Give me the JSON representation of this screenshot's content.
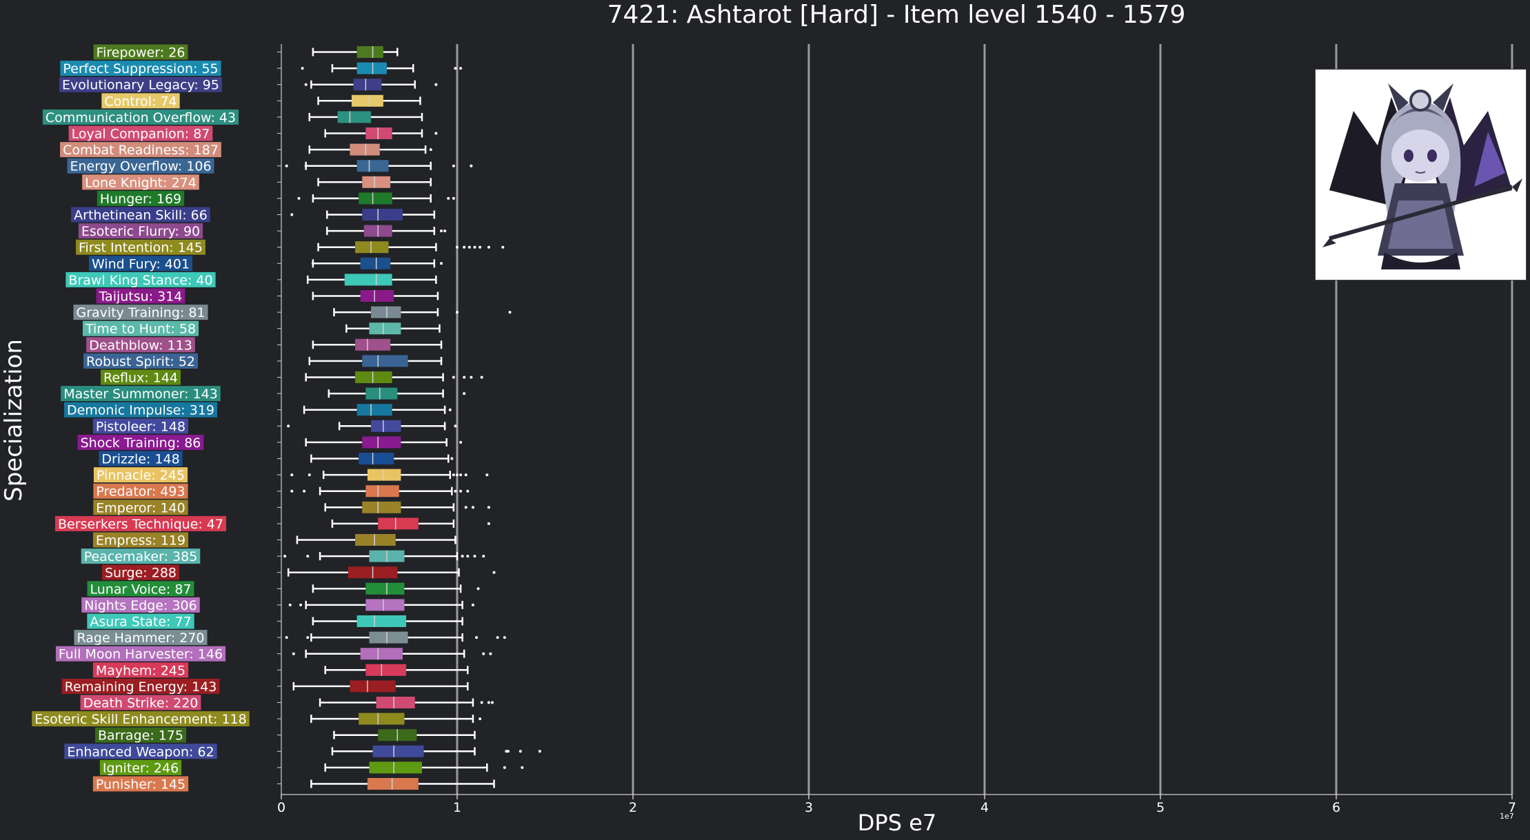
{
  "page": {
    "title": "7421: Ashtarot [Hard] - Item level 1540 - 1579",
    "ylabel": "Specialization",
    "xlabel": "DPS e7",
    "sci_note": "1e7"
  },
  "portrait": {
    "icon": "ashtarot-boss-portrait"
  },
  "chart_data": {
    "type": "box",
    "title": "7421: Ashtarot [Hard] - Item level 1540 - 1579",
    "xlabel": "DPS e7",
    "ylabel": "Specialization",
    "xlim": [
      0,
      7
    ],
    "xticks": [
      0,
      1,
      2,
      3,
      4,
      5,
      6,
      7
    ],
    "x_scale_note": "1e7",
    "grid": "vertical",
    "categories": [
      {
        "label": "Firepower: 26",
        "color": "#4d7a1e",
        "whisker_low": 0.18,
        "q1": 0.43,
        "median": 0.52,
        "q3": 0.58,
        "whisker_high": 0.66,
        "outliers": []
      },
      {
        "label": "Perfect Suppression: 55",
        "color": "#1a8bb0",
        "whisker_low": 0.29,
        "q1": 0.43,
        "median": 0.52,
        "q3": 0.6,
        "whisker_high": 0.75,
        "outliers": [
          0.12,
          0.99,
          1.02
        ]
      },
      {
        "label": "Evolutionary Legacy: 95",
        "color": "#3e3f88",
        "whisker_low": 0.17,
        "q1": 0.41,
        "median": 0.48,
        "q3": 0.57,
        "whisker_high": 0.76,
        "outliers": [
          0.14,
          0.88
        ]
      },
      {
        "label": "Control: 74",
        "color": "#e5c86a",
        "whisker_low": 0.21,
        "q1": 0.4,
        "median": 0.5,
        "q3": 0.58,
        "whisker_high": 0.79,
        "outliers": []
      },
      {
        "label": "Communication Overflow: 43",
        "color": "#2e9080",
        "whisker_low": 0.16,
        "q1": 0.32,
        "median": 0.39,
        "q3": 0.51,
        "whisker_high": 0.8,
        "outliers": []
      },
      {
        "label": "Loyal Companion: 87",
        "color": "#d04a72",
        "whisker_low": 0.25,
        "q1": 0.48,
        "median": 0.55,
        "q3": 0.63,
        "whisker_high": 0.8,
        "outliers": [
          0.88
        ]
      },
      {
        "label": "Combat Readiness: 187",
        "color": "#d18c7c",
        "whisker_low": 0.16,
        "q1": 0.39,
        "median": 0.48,
        "q3": 0.56,
        "whisker_high": 0.82,
        "outliers": [
          0.85
        ]
      },
      {
        "label": "Energy Overflow: 106",
        "color": "#3a6694",
        "whisker_low": 0.14,
        "q1": 0.43,
        "median": 0.5,
        "q3": 0.61,
        "whisker_high": 0.85,
        "outliers": [
          0.03,
          0.14,
          0.98,
          1.08
        ]
      },
      {
        "label": "Lone Knight: 274",
        "color": "#d9907e",
        "whisker_low": 0.21,
        "q1": 0.46,
        "median": 0.53,
        "q3": 0.62,
        "whisker_high": 0.85,
        "outliers": []
      },
      {
        "label": "Hunger: 169",
        "color": "#1f7a2a",
        "whisker_low": 0.18,
        "q1": 0.44,
        "median": 0.52,
        "q3": 0.63,
        "whisker_high": 0.85,
        "outliers": [
          0.1,
          0.95,
          0.98
        ]
      },
      {
        "label": "Arthetinean Skill: 66",
        "color": "#3a3e8a",
        "whisker_low": 0.26,
        "q1": 0.46,
        "median": 0.55,
        "q3": 0.69,
        "whisker_high": 0.87,
        "outliers": [
          0.06
        ]
      },
      {
        "label": "Esoteric Flurry: 90",
        "color": "#8e4a8e",
        "whisker_low": 0.26,
        "q1": 0.47,
        "median": 0.55,
        "q3": 0.63,
        "whisker_high": 0.87,
        "outliers": [
          0.91,
          0.93
        ]
      },
      {
        "label": "First Intention: 145",
        "color": "#8e8a1e",
        "whisker_low": 0.21,
        "q1": 0.42,
        "median": 0.51,
        "q3": 0.61,
        "whisker_high": 0.88,
        "outliers": [
          1.0,
          1.04,
          1.07,
          1.1,
          1.13,
          1.18,
          1.26
        ]
      },
      {
        "label": "Wind Fury: 401",
        "color": "#1b4f8e",
        "whisker_low": 0.18,
        "q1": 0.45,
        "median": 0.54,
        "q3": 0.62,
        "whisker_high": 0.87,
        "outliers": [
          0.18,
          0.91
        ]
      },
      {
        "label": "Brawl King Stance: 40",
        "color": "#3ec8b8",
        "whisker_low": 0.15,
        "q1": 0.36,
        "median": 0.54,
        "q3": 0.63,
        "whisker_high": 0.88,
        "outliers": []
      },
      {
        "label": "Taijutsu: 314",
        "color": "#8a1a8a",
        "whisker_low": 0.18,
        "q1": 0.45,
        "median": 0.53,
        "q3": 0.64,
        "whisker_high": 0.89,
        "outliers": []
      },
      {
        "label": "Gravity Training: 81",
        "color": "#7a8a92",
        "whisker_low": 0.3,
        "q1": 0.51,
        "median": 0.6,
        "q3": 0.68,
        "whisker_high": 0.89,
        "outliers": [
          1.0,
          1.3
        ]
      },
      {
        "label": "Time to Hunt: 58",
        "color": "#5cb8a8",
        "whisker_low": 0.37,
        "q1": 0.5,
        "median": 0.58,
        "q3": 0.68,
        "whisker_high": 0.9,
        "outliers": []
      },
      {
        "label": "Deathblow: 113",
        "color": "#a0508a",
        "whisker_low": 0.18,
        "q1": 0.42,
        "median": 0.49,
        "q3": 0.62,
        "whisker_high": 0.91,
        "outliers": []
      },
      {
        "label": "Robust Spirit: 52",
        "color": "#3a6494",
        "whisker_low": 0.16,
        "q1": 0.46,
        "median": 0.55,
        "q3": 0.72,
        "whisker_high": 0.91,
        "outliers": []
      },
      {
        "label": "Reflux: 144",
        "color": "#5e8a12",
        "whisker_low": 0.14,
        "q1": 0.42,
        "median": 0.52,
        "q3": 0.63,
        "whisker_high": 0.92,
        "outliers": [
          0.98,
          1.04,
          1.08,
          1.14
        ]
      },
      {
        "label": "Master Summoner: 143",
        "color": "#2a8e7e",
        "whisker_low": 0.27,
        "q1": 0.48,
        "median": 0.56,
        "q3": 0.66,
        "whisker_high": 0.92,
        "outliers": [
          1.04
        ]
      },
      {
        "label": "Demonic Impulse: 319",
        "color": "#16789e",
        "whisker_low": 0.13,
        "q1": 0.43,
        "median": 0.51,
        "q3": 0.63,
        "whisker_high": 0.93,
        "outliers": [
          0.96
        ]
      },
      {
        "label": "Pistoleer: 148",
        "color": "#434a9e",
        "whisker_low": 0.33,
        "q1": 0.51,
        "median": 0.58,
        "q3": 0.68,
        "whisker_high": 0.93,
        "outliers": [
          0.04,
          0.99
        ]
      },
      {
        "label": "Shock Training: 86",
        "color": "#8a1a90",
        "whisker_low": 0.14,
        "q1": 0.46,
        "median": 0.55,
        "q3": 0.68,
        "whisker_high": 0.94,
        "outliers": [
          1.02
        ]
      },
      {
        "label": "Drizzle: 148",
        "color": "#1a4e92",
        "whisker_low": 0.17,
        "q1": 0.44,
        "median": 0.52,
        "q3": 0.64,
        "whisker_high": 0.95,
        "outliers": [
          0.97
        ]
      },
      {
        "label": "Pinnacle: 245",
        "color": "#e8c463",
        "whisker_low": 0.24,
        "q1": 0.49,
        "median": 0.58,
        "q3": 0.68,
        "whisker_high": 0.96,
        "outliers": [
          0.06,
          0.16,
          0.98,
          1.0,
          1.02,
          1.05,
          1.17
        ]
      },
      {
        "label": "Predator: 493",
        "color": "#d9784f",
        "whisker_low": 0.22,
        "q1": 0.48,
        "median": 0.55,
        "q3": 0.67,
        "whisker_high": 0.97,
        "outliers": [
          0.06,
          0.13,
          0.99,
          1.02,
          1.06
        ]
      },
      {
        "label": "Emperor: 140",
        "color": "#9a8228",
        "whisker_low": 0.25,
        "q1": 0.46,
        "median": 0.55,
        "q3": 0.68,
        "whisker_high": 0.98,
        "outliers": [
          1.05,
          1.09,
          1.18
        ]
      },
      {
        "label": "Berserkers Technique: 47",
        "color": "#d83a52",
        "whisker_low": 0.29,
        "q1": 0.55,
        "median": 0.65,
        "q3": 0.78,
        "whisker_high": 0.98,
        "outliers": [
          1.18
        ]
      },
      {
        "label": "Empress: 119",
        "color": "#9a8228",
        "whisker_low": 0.09,
        "q1": 0.42,
        "median": 0.53,
        "q3": 0.65,
        "whisker_high": 0.99,
        "outliers": []
      },
      {
        "label": "Peacemaker: 385",
        "color": "#5ab4ac",
        "whisker_low": 0.22,
        "q1": 0.5,
        "median": 0.6,
        "q3": 0.7,
        "whisker_high": 1.0,
        "outliers": [
          0.02,
          0.15,
          1.03,
          1.06,
          1.1,
          1.15
        ]
      },
      {
        "label": "Surge: 288",
        "color": "#9a1e22",
        "whisker_low": 0.04,
        "q1": 0.38,
        "median": 0.52,
        "q3": 0.66,
        "whisker_high": 1.01,
        "outliers": [
          1.21
        ]
      },
      {
        "label": "Lunar Voice: 87",
        "color": "#238e3a",
        "whisker_low": 0.18,
        "q1": 0.48,
        "median": 0.6,
        "q3": 0.7,
        "whisker_high": 1.02,
        "outliers": [
          1.12
        ]
      },
      {
        "label": "Nights Edge: 306",
        "color": "#b573c0",
        "whisker_low": 0.14,
        "q1": 0.48,
        "median": 0.58,
        "q3": 0.7,
        "whisker_high": 1.03,
        "outliers": [
          0.05,
          0.11,
          1.09
        ]
      },
      {
        "label": "Asura State: 77",
        "color": "#3ec8b8",
        "whisker_low": 0.18,
        "q1": 0.43,
        "median": 0.53,
        "q3": 0.71,
        "whisker_high": 1.03,
        "outliers": []
      },
      {
        "label": "Rage Hammer: 270",
        "color": "#7a8e94",
        "whisker_low": 0.17,
        "q1": 0.5,
        "median": 0.6,
        "q3": 0.72,
        "whisker_high": 1.03,
        "outliers": [
          0.03,
          0.15,
          1.11,
          1.23,
          1.27
        ]
      },
      {
        "label": "Full Moon Harvester: 146",
        "color": "#b36fbb",
        "whisker_low": 0.14,
        "q1": 0.45,
        "median": 0.55,
        "q3": 0.69,
        "whisker_high": 1.04,
        "outliers": [
          0.07,
          1.15,
          1.19
        ]
      },
      {
        "label": "Mayhem: 245",
        "color": "#d83a5a",
        "whisker_low": 0.25,
        "q1": 0.48,
        "median": 0.57,
        "q3": 0.71,
        "whisker_high": 1.06,
        "outliers": []
      },
      {
        "label": "Remaining Energy: 143",
        "color": "#9a1e22",
        "whisker_low": 0.07,
        "q1": 0.39,
        "median": 0.49,
        "q3": 0.65,
        "whisker_high": 1.06,
        "outliers": []
      },
      {
        "label": "Death Strike: 220",
        "color": "#d04a72",
        "whisker_low": 0.22,
        "q1": 0.54,
        "median": 0.64,
        "q3": 0.76,
        "whisker_high": 1.09,
        "outliers": [
          1.14,
          1.18,
          1.2
        ]
      },
      {
        "label": "Esoteric Skill Enhancement: 118",
        "color": "#8e8a1e",
        "whisker_low": 0.17,
        "q1": 0.44,
        "median": 0.55,
        "q3": 0.7,
        "whisker_high": 1.09,
        "outliers": [
          1.13
        ]
      },
      {
        "label": "Barrage: 175",
        "color": "#3a6a1a",
        "whisker_low": 0.3,
        "q1": 0.55,
        "median": 0.66,
        "q3": 0.77,
        "whisker_high": 1.1,
        "outliers": []
      },
      {
        "label": "Enhanced Weapon: 62",
        "color": "#404a9a",
        "whisker_low": 0.29,
        "q1": 0.52,
        "median": 0.64,
        "q3": 0.81,
        "whisker_high": 1.1,
        "outliers": [
          1.28,
          1.29,
          1.36,
          1.47
        ]
      },
      {
        "label": "Igniter: 246",
        "color": "#5e9a12",
        "whisker_low": 0.25,
        "q1": 0.5,
        "median": 0.64,
        "q3": 0.8,
        "whisker_high": 1.17,
        "outliers": [
          1.27,
          1.37
        ]
      },
      {
        "label": "Punisher: 145",
        "color": "#d9784f",
        "whisker_low": 0.17,
        "q1": 0.49,
        "median": 0.63,
        "q3": 0.78,
        "whisker_high": 1.21,
        "outliers": []
      }
    ]
  }
}
